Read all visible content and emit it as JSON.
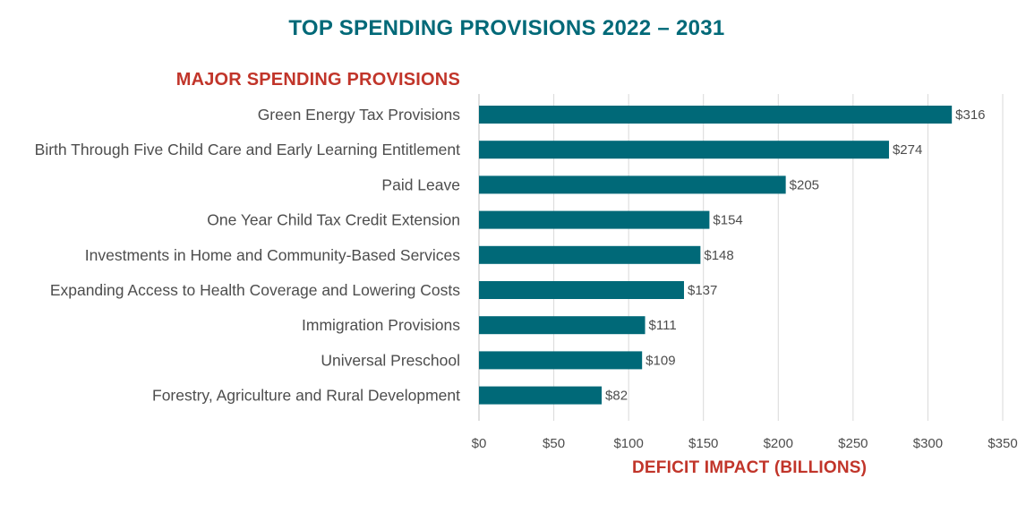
{
  "chart_data": {
    "type": "bar",
    "orientation": "horizontal",
    "title": "TOP SPENDING PROVISIONS 2022 – 2031",
    "category_heading": "MAJOR SPENDING PROVISIONS",
    "xlabel": "DEFICIT IMPACT (BILLIONS)",
    "ylabel": "",
    "categories": [
      "Green Energy Tax Provisions",
      "Birth Through Five Child Care and Early Learning Entitlement",
      "Paid Leave",
      "One Year Child Tax Credit Extension",
      "Investments in Home and Community-Based Services",
      "Expanding Access to Health Coverage and Lowering Costs",
      "Immigration Provisions",
      "Universal Preschool",
      "Forestry, Agriculture and Rural Development"
    ],
    "values": [
      316,
      274,
      205,
      154,
      148,
      137,
      111,
      109,
      82
    ],
    "data_labels": [
      "$316",
      "$274",
      "$205",
      "$154",
      "$148",
      "$137",
      "$111",
      "$109",
      "$82"
    ],
    "xlim": [
      0,
      350
    ],
    "x_ticks": [
      0,
      50,
      100,
      150,
      200,
      250,
      300,
      350
    ],
    "x_tick_labels": [
      "$0",
      "$50",
      "$100",
      "$150",
      "$200",
      "$250",
      "$300",
      "$350"
    ],
    "grid": "vertical",
    "legend": "none",
    "colors": {
      "bar": "#006978",
      "title": "#006978",
      "heading": "#c1352a",
      "grid": "#d9d9d9",
      "text": "#4d4d4d"
    }
  }
}
